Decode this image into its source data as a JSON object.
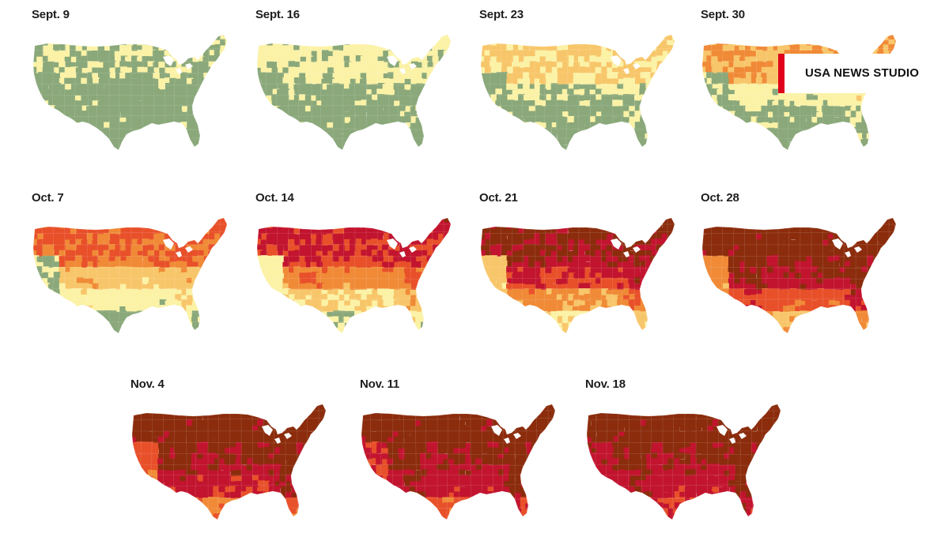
{
  "legend_colors": {
    "no_change": "#8aa87a",
    "minimal": "#fbf2a6",
    "patchy": "#f8c66a",
    "partial": "#f08a37",
    "near_peak": "#e8502a",
    "peak": "#c2142f",
    "past_peak": "#8b2c0c"
  },
  "maps": [
    {
      "label": "Sept. 9",
      "levels": [
        0.4,
        0.0,
        0.0,
        0.0,
        0.0
      ]
    },
    {
      "label": "Sept. 16",
      "levels": [
        0.8,
        0.1,
        0.0,
        0.0,
        0.0
      ]
    },
    {
      "label": "Sept. 23",
      "levels": [
        1.6,
        0.3,
        0.0,
        0.0,
        0.0
      ]
    },
    {
      "label": "Sept. 30",
      "levels": [
        2.4,
        0.8,
        0.0,
        0.0,
        0.0
      ]
    },
    {
      "label": "Oct. 7",
      "levels": [
        3.6,
        2.0,
        1.0,
        0.0,
        0.0
      ]
    },
    {
      "label": "Oct. 14",
      "levels": [
        4.6,
        3.2,
        1.6,
        0.6,
        0.0
      ]
    },
    {
      "label": "Oct. 21",
      "levels": [
        5.6,
        4.8,
        3.0,
        1.6,
        0.8
      ]
    },
    {
      "label": "Oct. 28",
      "levels": [
        6.0,
        5.8,
        4.6,
        2.8,
        1.8
      ]
    },
    {
      "label": "Nov. 4",
      "levels": [
        6.0,
        6.0,
        5.6,
        4.0,
        3.2
      ]
    },
    {
      "label": "Nov. 11",
      "levels": [
        6.0,
        6.0,
        6.0,
        4.8,
        4.0
      ]
    },
    {
      "label": "Nov. 18",
      "levels": [
        6.0,
        6.0,
        6.0,
        5.6,
        5.0
      ]
    }
  ],
  "watermark": {
    "text": "USA NEWS STUDIO"
  }
}
